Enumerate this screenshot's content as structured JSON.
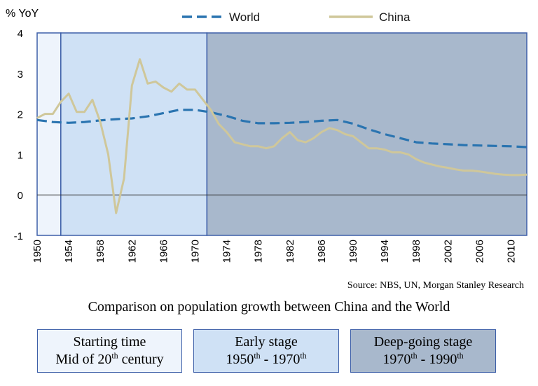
{
  "chart_data": {
    "type": "line",
    "ylabel": "% YoY",
    "ylim": [
      -1,
      4
    ],
    "xlim": [
      1950,
      2012
    ],
    "yticks": [
      "4",
      "3",
      "2",
      "1",
      "0",
      "-1"
    ],
    "xticks": [
      "1950",
      "1954",
      "1958",
      "1962",
      "1966",
      "1970",
      "1974",
      "1978",
      "1982",
      "1986",
      "1990",
      "1994",
      "1998",
      "2002",
      "2006",
      "2010"
    ],
    "legend_placement": "top",
    "series": [
      {
        "name": "World",
        "style": "dashed",
        "color": "#2a74b0",
        "x": [
          1950,
          1952,
          1954,
          1956,
          1958,
          1960,
          1962,
          1964,
          1966,
          1968,
          1970,
          1972,
          1974,
          1976,
          1978,
          1980,
          1982,
          1984,
          1986,
          1988,
          1990,
          1992,
          1994,
          1996,
          1998,
          2000,
          2002,
          2004,
          2006,
          2008,
          2010,
          2012
        ],
        "y": [
          1.85,
          1.8,
          1.78,
          1.8,
          1.84,
          1.87,
          1.89,
          1.94,
          2.02,
          2.1,
          2.1,
          2.04,
          1.95,
          1.83,
          1.77,
          1.77,
          1.78,
          1.8,
          1.83,
          1.85,
          1.76,
          1.62,
          1.5,
          1.4,
          1.3,
          1.27,
          1.25,
          1.23,
          1.22,
          1.21,
          1.2,
          1.18
        ]
      },
      {
        "name": "China",
        "style": "solid",
        "color": "#cfc79a",
        "x": [
          1950,
          1951,
          1952,
          1953,
          1954,
          1955,
          1956,
          1957,
          1958,
          1959,
          1960,
          1961,
          1962,
          1963,
          1964,
          1965,
          1966,
          1967,
          1968,
          1969,
          1970,
          1971,
          1972,
          1973,
          1974,
          1975,
          1976,
          1977,
          1978,
          1979,
          1980,
          1981,
          1982,
          1983,
          1984,
          1985,
          1986,
          1987,
          1988,
          1989,
          1990,
          1991,
          1992,
          1993,
          1994,
          1995,
          1996,
          1997,
          1998,
          1999,
          2000,
          2001,
          2002,
          2003,
          2004,
          2005,
          2006,
          2007,
          2008,
          2009,
          2010,
          2011,
          2012
        ],
        "y": [
          1.9,
          2.0,
          2.0,
          2.3,
          2.5,
          2.05,
          2.05,
          2.35,
          1.8,
          1.0,
          -0.45,
          0.4,
          2.7,
          3.35,
          2.75,
          2.8,
          2.65,
          2.55,
          2.75,
          2.6,
          2.6,
          2.35,
          2.1,
          1.75,
          1.55,
          1.3,
          1.25,
          1.2,
          1.2,
          1.15,
          1.2,
          1.4,
          1.55,
          1.35,
          1.3,
          1.4,
          1.55,
          1.65,
          1.6,
          1.5,
          1.45,
          1.3,
          1.15,
          1.15,
          1.12,
          1.05,
          1.05,
          1.0,
          0.88,
          0.8,
          0.75,
          0.7,
          0.67,
          0.63,
          0.6,
          0.6,
          0.58,
          0.55,
          0.52,
          0.5,
          0.49,
          0.49,
          0.5
        ]
      }
    ],
    "stages": [
      {
        "x_from": 1950,
        "x_to": 1953,
        "color": "#eef4fc"
      },
      {
        "x_from": 1953,
        "x_to": 1971.5,
        "color": "#cfe1f5"
      },
      {
        "x_from": 1971.5,
        "x_to": 2012,
        "color": "#a8b8cc"
      }
    ]
  },
  "source": "Source: NBS, UN, Morgan Stanley Research",
  "caption": "Comparison on population growth between China and the World",
  "boxes": [
    {
      "title": "Starting time",
      "sub_pre": "Mid of 20",
      "sub_sup": "th",
      "sub_post": " century",
      "sub_sup2": "",
      "sub_post2": ""
    },
    {
      "title": "Early stage",
      "sub_pre": "1950",
      "sub_sup": "th",
      "sub_post": " - 1970",
      "sub_sup2": "th",
      "sub_post2": ""
    },
    {
      "title": "Deep-going stage",
      "sub_pre": "1970",
      "sub_sup": "th",
      "sub_post": " - 1990",
      "sub_sup2": "th",
      "sub_post2": ""
    }
  ]
}
